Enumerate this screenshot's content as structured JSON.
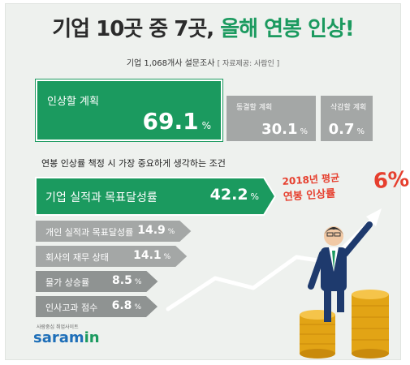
{
  "title": {
    "part1": "기업 10곳 중 7곳, ",
    "part2": "올해 연봉 인상!"
  },
  "subtitle": {
    "text": "기업 1,068개사 설문조사 ",
    "source": "[ 자료제공: 사람인 ]"
  },
  "plan": [
    {
      "label": "인상할 계획",
      "value": "69.1",
      "unit": "%"
    },
    {
      "label": "동결할 계획",
      "value": "30.1",
      "unit": "%"
    },
    {
      "label": "삭감할 계획",
      "value": "0.7",
      "unit": "%"
    }
  ],
  "conditions_title": "연봉 인상률 책정 시 가장 중요하게 생각하는 조건",
  "average": {
    "line1": "2018년 평균",
    "line2": "연봉 인상률",
    "value": "6%"
  },
  "logo": {
    "tagline": "사람중심 취업사이트",
    "name": "saram",
    "suffix": "in"
  },
  "colors": {
    "green": "#1b9a5f",
    "gray": "#a4a7a6",
    "dark_gray": "#8f9392",
    "red": "#e63f2e",
    "navy": "#1e3a6d"
  },
  "icons": [
    "upward-arrow-icon",
    "businessman-illustration",
    "coin-stack-icon"
  ],
  "chart_data": [
    {
      "type": "bar",
      "title": "",
      "categories": [
        "인상할 계획",
        "동결할 계획",
        "삭감할 계획"
      ],
      "values": [
        69.1,
        30.1,
        0.7
      ],
      "unit": "%"
    },
    {
      "type": "bar",
      "title": "연봉 인상률 책정 시 가장 중요하게 생각하는 조건",
      "categories": [
        "기업 실적과 목표달성률",
        "개인 실적과 목표달성률",
        "회사의 재무 상태",
        "물가 상승률",
        "인사고과 점수"
      ],
      "values": [
        42.2,
        14.9,
        14.1,
        8.5,
        6.8
      ],
      "labels": [
        "42.2",
        "14.9",
        "14.1",
        "8.5",
        "6.8"
      ],
      "unit": "%"
    }
  ]
}
